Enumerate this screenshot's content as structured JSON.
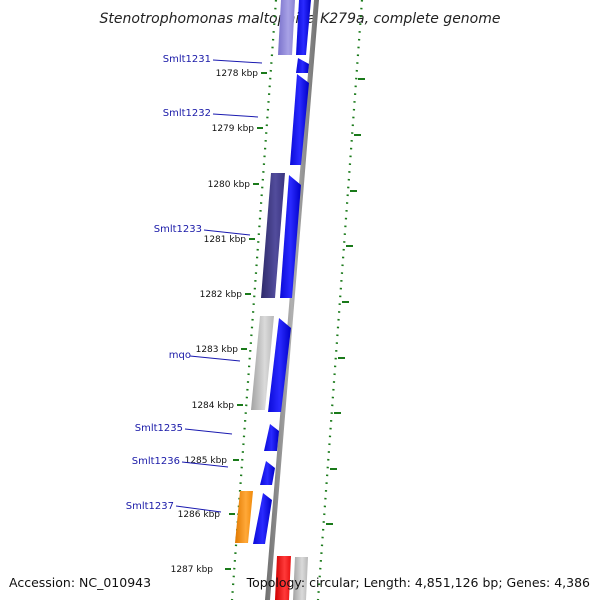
{
  "title": "Stenotrophomonas maltophilia K279a, complete genome",
  "accession": "Accession: NC_010943",
  "topology": "Topology: circular; Length: 4,851,126 bp; Genes: 4,386",
  "kbp_labels": [
    "1278 kbp",
    "1279 kbp",
    "1280 kbp",
    "1281 kbp",
    "1282 kbp",
    "1283 kbp",
    "1284 kbp",
    "1285 kbp",
    "1286 kbp",
    "1287 kbp"
  ],
  "gene_labels": [
    "Smlt1231",
    "Smlt1232",
    "Smlt1233",
    "mqo",
    "Smlt1235",
    "Smlt1236",
    "Smlt1237"
  ],
  "colors": {
    "forward_cds": "#0000ee",
    "backbone": "#8a8a8a",
    "ticks": "#1a7a1a",
    "label_line": "#1a1ab0",
    "hit_purple": "#3f3a86",
    "hit_lavender": "#8f88d6",
    "hit_grey": "#b4b4b4",
    "hit_orange": "#f08a0a",
    "hit_red": "#ee1111"
  }
}
